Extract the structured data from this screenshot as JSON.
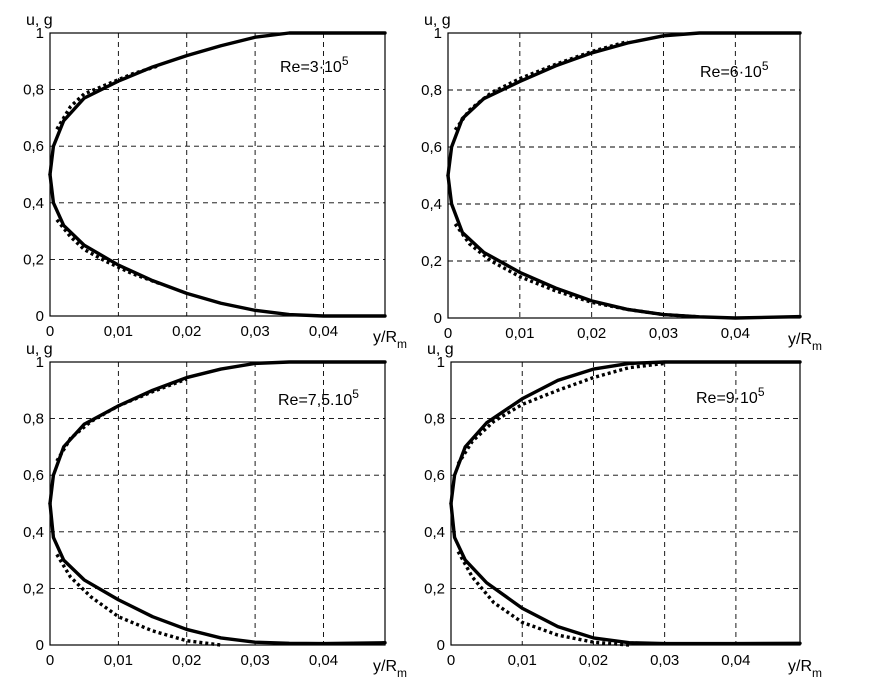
{
  "figure": {
    "ylabel": "u, g",
    "xlabel_main": "y/R",
    "xlabel_sub": "m"
  },
  "chart_data": [
    {
      "type": "line",
      "annotation_main": "Re=3·10",
      "annotation_exp": "5",
      "xlim": [
        0,
        0.049
      ],
      "ylim": [
        0,
        1
      ],
      "x_ticks": [
        "0",
        "0,01",
        "0,02",
        "0,03",
        "0,04"
      ],
      "y_ticks": [
        "0",
        "0,2",
        "0,4",
        "0,6",
        "0,8",
        "1"
      ],
      "grid": true,
      "series": [
        {
          "style": "solid",
          "x": [
            0,
            0.0005,
            0.002,
            0.005,
            0.01,
            0.015,
            0.02,
            0.025,
            0.03,
            0.035,
            0.04,
            0.049
          ],
          "y": [
            0.5,
            0.6,
            0.69,
            0.77,
            0.83,
            0.88,
            0.92,
            0.955,
            0.985,
            1.0,
            1.0,
            1.0
          ]
        },
        {
          "style": "solid",
          "x": [
            0,
            0.0005,
            0.002,
            0.005,
            0.01,
            0.015,
            0.02,
            0.025,
            0.03,
            0.035,
            0.04,
            0.049
          ],
          "y": [
            0.5,
            0.4,
            0.32,
            0.25,
            0.18,
            0.125,
            0.08,
            0.045,
            0.02,
            0.005,
            0.0,
            0.0
          ]
        },
        {
          "style": "dotted",
          "x": [
            0.001,
            0.003,
            0.005,
            0.008,
            0.012,
            0.016
          ],
          "y": [
            0.66,
            0.74,
            0.785,
            0.815,
            0.855,
            0.885
          ]
        },
        {
          "style": "dotted",
          "x": [
            0.001,
            0.003,
            0.005,
            0.008,
            0.012,
            0.016
          ],
          "y": [
            0.34,
            0.28,
            0.235,
            0.195,
            0.15,
            0.115
          ]
        }
      ]
    },
    {
      "type": "line",
      "annotation_main": "Re=6·10",
      "annotation_exp": "5",
      "xlim": [
        0,
        0.049
      ],
      "ylim": [
        0,
        1
      ],
      "x_ticks": [
        "0",
        "0,01",
        "0,02",
        "0,03",
        "0,04"
      ],
      "y_ticks": [
        "0",
        "0,2",
        "0,4",
        "0,6",
        "0,8",
        "1"
      ],
      "grid": true,
      "series": [
        {
          "style": "solid",
          "x": [
            0,
            0.0005,
            0.002,
            0.005,
            0.01,
            0.015,
            0.02,
            0.025,
            0.03,
            0.035,
            0.04,
            0.049
          ],
          "y": [
            0.5,
            0.6,
            0.7,
            0.77,
            0.83,
            0.885,
            0.93,
            0.965,
            0.99,
            1.0,
            1.0,
            1.0
          ]
        },
        {
          "style": "solid",
          "x": [
            0,
            0.0005,
            0.002,
            0.005,
            0.01,
            0.015,
            0.02,
            0.025,
            0.03,
            0.035,
            0.04,
            0.049
          ],
          "y": [
            0.5,
            0.4,
            0.3,
            0.23,
            0.16,
            0.105,
            0.06,
            0.03,
            0.012,
            0.004,
            0.0,
            0.005
          ]
        },
        {
          "style": "dotted",
          "x": [
            0.001,
            0.003,
            0.006,
            0.01,
            0.015,
            0.02,
            0.025
          ],
          "y": [
            0.66,
            0.73,
            0.79,
            0.84,
            0.89,
            0.935,
            0.97
          ]
        },
        {
          "style": "dotted",
          "x": [
            0.001,
            0.003,
            0.006,
            0.01,
            0.015,
            0.02,
            0.025,
            0.03,
            0.035
          ],
          "y": [
            0.33,
            0.26,
            0.2,
            0.145,
            0.095,
            0.055,
            0.03,
            0.012,
            0.004
          ]
        }
      ]
    },
    {
      "type": "line",
      "annotation_main": "Re=7,5.10",
      "annotation_exp": "5",
      "xlim": [
        0,
        0.049
      ],
      "ylim": [
        0,
        1
      ],
      "x_ticks": [
        "0",
        "0,01",
        "0,02",
        "0,03",
        "0,04"
      ],
      "y_ticks": [
        "0",
        "0,2",
        "0,4",
        "0,6",
        "0,8",
        "1"
      ],
      "grid": true,
      "series": [
        {
          "style": "solid",
          "x": [
            0,
            0.0005,
            0.002,
            0.005,
            0.01,
            0.015,
            0.02,
            0.025,
            0.03,
            0.035,
            0.04,
            0.049
          ],
          "y": [
            0.5,
            0.6,
            0.7,
            0.78,
            0.845,
            0.9,
            0.945,
            0.975,
            0.995,
            1.0,
            1.0,
            1.0
          ]
        },
        {
          "style": "solid",
          "x": [
            0,
            0.0005,
            0.002,
            0.005,
            0.01,
            0.015,
            0.02,
            0.025,
            0.03,
            0.035,
            0.04,
            0.049
          ],
          "y": [
            0.5,
            0.38,
            0.3,
            0.23,
            0.16,
            0.1,
            0.055,
            0.025,
            0.01,
            0.006,
            0.005,
            0.008
          ]
        },
        {
          "style": "dotted",
          "x": [
            0.001,
            0.003,
            0.006,
            0.01,
            0.015,
            0.02
          ],
          "y": [
            0.65,
            0.73,
            0.79,
            0.845,
            0.895,
            0.94
          ]
        },
        {
          "style": "dotted",
          "x": [
            0.001,
            0.003,
            0.006,
            0.01,
            0.015,
            0.02,
            0.025
          ],
          "y": [
            0.32,
            0.24,
            0.17,
            0.1,
            0.05,
            0.015,
            0.0
          ]
        }
      ]
    },
    {
      "type": "line",
      "annotation_main": "Re=9·10",
      "annotation_exp": "5",
      "xlim": [
        0,
        0.049
      ],
      "ylim": [
        0,
        1
      ],
      "x_ticks": [
        "0",
        "0,01",
        "0,02",
        "0,03",
        "0,04"
      ],
      "y_ticks": [
        "0",
        "0,2",
        "0,4",
        "0,6",
        "0,8",
        "1"
      ],
      "grid": true,
      "series": [
        {
          "style": "solid",
          "x": [
            0,
            0.0005,
            0.002,
            0.005,
            0.01,
            0.015,
            0.02,
            0.025,
            0.03,
            0.035,
            0.04,
            0.049
          ],
          "y": [
            0.5,
            0.6,
            0.7,
            0.785,
            0.87,
            0.935,
            0.975,
            0.995,
            1.0,
            1.0,
            1.0,
            1.0
          ]
        },
        {
          "style": "solid",
          "x": [
            0,
            0.0005,
            0.002,
            0.005,
            0.01,
            0.015,
            0.02,
            0.025,
            0.03,
            0.035,
            0.04,
            0.049
          ],
          "y": [
            0.5,
            0.38,
            0.3,
            0.22,
            0.13,
            0.065,
            0.025,
            0.008,
            0.005,
            0.005,
            0.005,
            0.006
          ]
        },
        {
          "style": "dotted",
          "x": [
            0.001,
            0.003,
            0.006,
            0.01,
            0.015,
            0.02,
            0.025,
            0.03
          ],
          "y": [
            0.64,
            0.72,
            0.79,
            0.85,
            0.9,
            0.945,
            0.98,
            0.995
          ]
        },
        {
          "style": "dotted",
          "x": [
            0.001,
            0.003,
            0.006,
            0.01,
            0.015,
            0.02,
            0.025
          ],
          "y": [
            0.33,
            0.24,
            0.15,
            0.08,
            0.035,
            0.01,
            0.0
          ]
        }
      ]
    }
  ]
}
